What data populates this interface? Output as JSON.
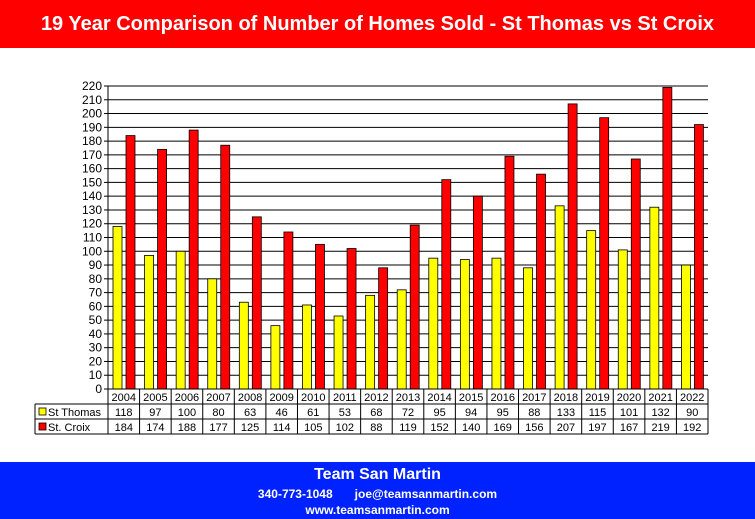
{
  "page": {
    "title": "19 Year Comparison of Number of Homes Sold - St Thomas vs St Croix",
    "footer": {
      "name": "Team San Martin",
      "phone": "340-773-1048",
      "email": "joe@teamsanmartin.com",
      "website": "www.teamsanmartin.com"
    },
    "colors": {
      "title_bg": "#ff0000",
      "footer_bg": "#0022ff"
    }
  },
  "chart_data": {
    "type": "bar",
    "title": "19 Year Comparison of Number of Homes Sold - St Thomas vs St Croix",
    "xlabel": "",
    "ylabel": "",
    "categories": [
      "2004",
      "2005",
      "2006",
      "2007",
      "2008",
      "2009",
      "2010",
      "2011",
      "2012",
      "2013",
      "2014",
      "2015",
      "2016",
      "2017",
      "2018",
      "2019",
      "2020",
      "2021",
      "2022"
    ],
    "series": [
      {
        "name": "St Thomas",
        "color": "#ffff00",
        "values": [
          118,
          97,
          100,
          80,
          63,
          46,
          61,
          53,
          68,
          72,
          95,
          94,
          95,
          88,
          133,
          115,
          101,
          132,
          90
        ]
      },
      {
        "name": "St. Croix",
        "color": "#ff0000",
        "values": [
          184,
          174,
          188,
          177,
          125,
          114,
          105,
          102,
          88,
          119,
          152,
          140,
          169,
          156,
          207,
          197,
          167,
          219,
          192
        ]
      }
    ],
    "ylim": [
      0,
      220
    ],
    "ytick_step": 10,
    "grid": true,
    "legend": "data-table"
  }
}
